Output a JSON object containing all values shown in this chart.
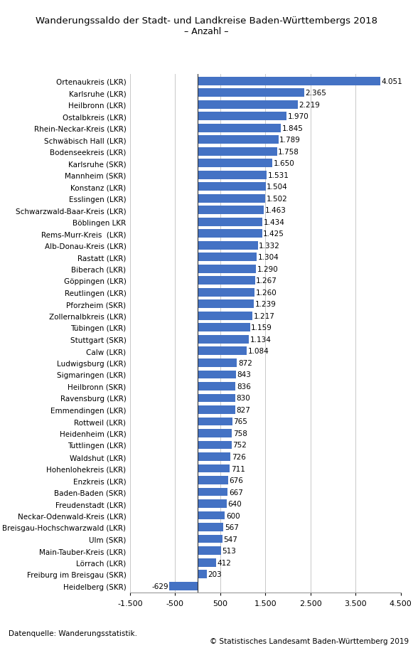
{
  "title": "Wanderungssaldo der Stadt- und Landkreise Baden-Württembergs 2018",
  "subtitle": "– Anzahl –",
  "categories": [
    "Ortenaukreis (LKR)",
    "Karlsruhe (LKR)",
    "Heilbronn (LKR)",
    "Ostalbkreis (LKR)",
    "Rhein-Neckar-Kreis (LKR)",
    "Schwäbisch Hall (LKR)",
    "Bodenseekreis (LKR)",
    "Karlsruhe (SKR)",
    "Mannheim (SKR)",
    "Konstanz (LKR)",
    "Esslingen (LKR)",
    "Schwarzwald-Baar-Kreis (LKR)",
    "Böblingen LKR",
    "Rems-Murr-Kreis  (LKR)",
    "Alb-Donau-Kreis (LKR)",
    "Rastatt (LKR)",
    "Biberach (LKR)",
    "Göppingen (LKR)",
    "Reutlingen (LKR)",
    "Pforzheim (SKR)",
    "Zollernalbkreis (LKR)",
    "Tübingen (LKR)",
    "Stuttgart (SKR)",
    "Calw (LKR)",
    "Ludwigsburg (LKR)",
    "Sigmaringen (LKR)",
    "Heilbronn (SKR)",
    "Ravensburg (LKR)",
    "Emmendingen (LKR)",
    "Rottweil (LKR)",
    "Heidenheim (LKR)",
    "Tuttlingen (LKR)",
    "Waldshut (LKR)",
    "Hohenlohekreis (LKR)",
    "Enzkreis (LKR)",
    "Baden-Baden (SKR)",
    "Freudenstadt (LKR)",
    "Neckar-Odenwald-Kreis (LKR)",
    "Breisgau-Hochschwarzwald (LKR)",
    "Ulm (SKR)",
    "Main-Tauber-Kreis (LKR)",
    "Lörrach (LKR)",
    "Freiburg im Breisgau (SKR)",
    "Heidelberg (SKR)"
  ],
  "values": [
    4051,
    2365,
    2219,
    1970,
    1845,
    1789,
    1758,
    1650,
    1531,
    1504,
    1502,
    1463,
    1434,
    1425,
    1332,
    1304,
    1290,
    1267,
    1260,
    1239,
    1217,
    1159,
    1134,
    1084,
    872,
    843,
    836,
    830,
    827,
    765,
    758,
    752,
    726,
    711,
    676,
    667,
    640,
    600,
    567,
    547,
    513,
    412,
    203,
    -629
  ],
  "bar_color": "#4472C4",
  "xlim": [
    -1500,
    4500
  ],
  "xticks": [
    -1500,
    -500,
    500,
    1500,
    2500,
    3500,
    4500
  ],
  "xtick_labels": [
    "-1.500",
    "-500",
    "500",
    "1.500",
    "2.500",
    "3.500",
    "4.500"
  ],
  "source": "Datenquelle: Wanderungsstatistik.",
  "copyright": "© Statistisches Landesamt Baden-Württemberg 2019",
  "background_color": "#ffffff",
  "grid_color": "#c8c8c8",
  "title_fontsize": 9.5,
  "subtitle_fontsize": 9,
  "bar_label_fontsize": 7.5,
  "ytick_fontsize": 7.5,
  "xtick_fontsize": 8,
  "source_fontsize": 7.5,
  "bar_height": 0.72
}
